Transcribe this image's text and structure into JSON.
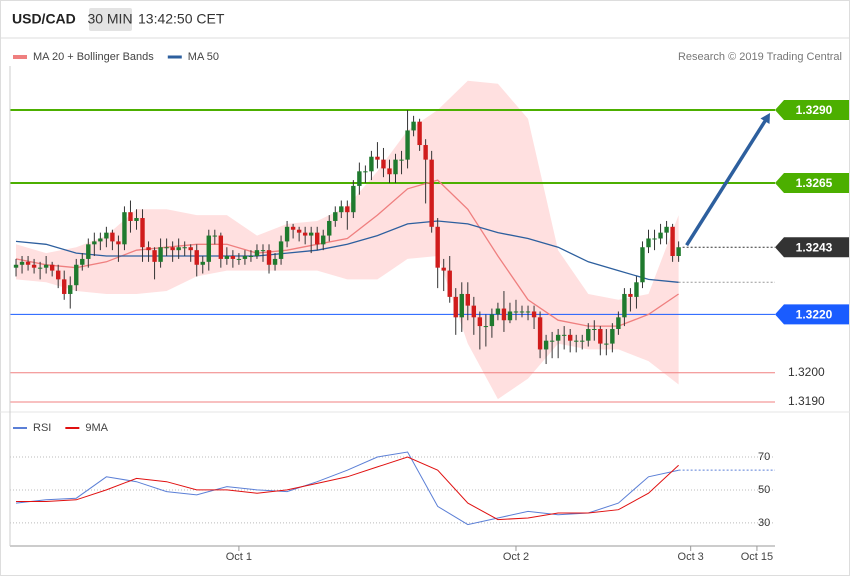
{
  "header": {
    "symbol": "USD/CAD",
    "interval": "30 MIN",
    "time": "13:42:50 CET"
  },
  "chart_data": [
    {
      "type": "candlestick",
      "credit": "Research © 2019 Trading Central",
      "color_up": "#1f7a2e",
      "color_down": "#d01c1c",
      "xlim": [
        -1,
        126
      ],
      "ylim": [
        1.3185,
        1.3305
      ],
      "open": [
        1.3236,
        1.3237,
        1.3238,
        1.3237,
        1.3236,
        1.3236,
        1.3237,
        1.3235,
        1.3232,
        1.3227,
        1.323,
        1.3237,
        1.3239,
        1.3244,
        1.3245,
        1.3246,
        1.3248,
        1.3245,
        1.3244,
        1.3255,
        1.3252,
        1.3253,
        1.3243,
        1.3242,
        1.3238,
        1.3243,
        1.3243,
        1.3242,
        1.3243,
        1.3243,
        1.3242,
        1.3237,
        1.3238,
        1.3247,
        1.3247,
        1.3239,
        1.324,
        1.3239,
        1.3239,
        1.324,
        1.324,
        1.3242,
        1.3242,
        1.3237,
        1.3239,
        1.3245,
        1.325,
        1.3249,
        1.3248,
        1.3247,
        1.3248,
        1.3244,
        1.3247,
        1.3252,
        1.3255,
        1.3257,
        1.3255,
        1.3264,
        1.3269,
        1.3269,
        1.3274,
        1.3273,
        1.327,
        1.3268,
        1.3273,
        1.3273,
        1.3283,
        1.3286,
        1.3278,
        1.3273,
        1.325,
        1.3236,
        1.3235,
        1.3226,
        1.3219,
        1.3227,
        1.3223,
        1.3219,
        1.3216,
        1.3216,
        1.322,
        1.3222,
        1.3218,
        1.3221,
        1.3221,
        1.3221,
        1.3221,
        1.3219,
        1.3208,
        1.3211,
        1.3211,
        1.3213,
        1.3213,
        1.3211,
        1.3211,
        1.3211,
        1.3215,
        1.3215,
        1.321,
        1.321,
        1.3215,
        1.3219,
        1.3227,
        1.3226,
        1.3231,
        1.3243,
        1.3246,
        1.3246,
        1.3248,
        1.325,
        1.324
      ],
      "high": [
        1.3239,
        1.324,
        1.324,
        1.3239,
        1.3238,
        1.324,
        1.3238,
        1.3237,
        1.3235,
        1.3233,
        1.3239,
        1.3241,
        1.3246,
        1.3248,
        1.3248,
        1.325,
        1.3249,
        1.3247,
        1.3257,
        1.3259,
        1.3256,
        1.3256,
        1.3245,
        1.3243,
        1.3246,
        1.3246,
        1.3245,
        1.3246,
        1.3245,
        1.3244,
        1.3244,
        1.324,
        1.3249,
        1.3249,
        1.3248,
        1.3243,
        1.3242,
        1.3241,
        1.3242,
        1.3242,
        1.3244,
        1.3244,
        1.3244,
        1.3241,
        1.3247,
        1.3252,
        1.3251,
        1.325,
        1.325,
        1.325,
        1.325,
        1.3249,
        1.3254,
        1.3257,
        1.3259,
        1.3259,
        1.3266,
        1.3272,
        1.3271,
        1.3276,
        1.3279,
        1.3277,
        1.3273,
        1.3275,
        1.3276,
        1.329,
        1.3288,
        1.3287,
        1.328,
        1.3276,
        1.3253,
        1.3239,
        1.324,
        1.3229,
        1.3231,
        1.3231,
        1.3226,
        1.3221,
        1.322,
        1.3222,
        1.3224,
        1.3228,
        1.3224,
        1.3225,
        1.3223,
        1.3223,
        1.3223,
        1.3221,
        1.3213,
        1.3214,
        1.3215,
        1.3216,
        1.3215,
        1.3213,
        1.3213,
        1.3217,
        1.3218,
        1.3216,
        1.3215,
        1.3217,
        1.3221,
        1.3229,
        1.3229,
        1.3233,
        1.3245,
        1.3249,
        1.3249,
        1.3251,
        1.3252,
        1.3251,
        1.3245
      ],
      "low": [
        1.3233,
        1.3234,
        1.3235,
        1.3234,
        1.3232,
        1.3234,
        1.3233,
        1.3229,
        1.3225,
        1.3222,
        1.3228,
        1.3235,
        1.3236,
        1.324,
        1.3242,
        1.3243,
        1.3242,
        1.3238,
        1.3242,
        1.3248,
        1.3249,
        1.3238,
        1.3238,
        1.3232,
        1.3236,
        1.324,
        1.3238,
        1.3239,
        1.324,
        1.3238,
        1.3233,
        1.3234,
        1.3235,
        1.3244,
        1.3236,
        1.3237,
        1.3236,
        1.3237,
        1.3237,
        1.3238,
        1.3239,
        1.3238,
        1.3234,
        1.3235,
        1.3237,
        1.3243,
        1.3246,
        1.3245,
        1.3244,
        1.3241,
        1.3242,
        1.3242,
        1.3245,
        1.325,
        1.3253,
        1.3249,
        1.3253,
        1.3261,
        1.3265,
        1.3266,
        1.327,
        1.3267,
        1.3265,
        1.3265,
        1.3268,
        1.327,
        1.3281,
        1.3276,
        1.3258,
        1.3248,
        1.3229,
        1.3228,
        1.3224,
        1.3213,
        1.3214,
        1.3218,
        1.3213,
        1.3208,
        1.3209,
        1.3212,
        1.3218,
        1.3214,
        1.3217,
        1.3218,
        1.3219,
        1.3218,
        1.3215,
        1.3205,
        1.3203,
        1.3205,
        1.3205,
        1.3208,
        1.3207,
        1.3207,
        1.3208,
        1.3209,
        1.3211,
        1.3206,
        1.3206,
        1.3207,
        1.3213,
        1.3216,
        1.3221,
        1.3222,
        1.3229,
        1.3241,
        1.3242,
        1.3244,
        1.3244,
        1.3238,
        1.3238
      ],
      "close": [
        1.3237,
        1.3238,
        1.3237,
        1.3236,
        1.3236,
        1.3237,
        1.3235,
        1.3232,
        1.3227,
        1.323,
        1.3237,
        1.3239,
        1.3244,
        1.3245,
        1.3246,
        1.3248,
        1.3245,
        1.3244,
        1.3255,
        1.3252,
        1.3253,
        1.3243,
        1.3242,
        1.3238,
        1.3243,
        1.3243,
        1.3242,
        1.3243,
        1.3243,
        1.3242,
        1.3237,
        1.3238,
        1.3247,
        1.3247,
        1.3239,
        1.324,
        1.3239,
        1.3239,
        1.324,
        1.324,
        1.3242,
        1.3242,
        1.3237,
        1.3239,
        1.3245,
        1.325,
        1.3249,
        1.3248,
        1.3247,
        1.3248,
        1.3244,
        1.3247,
        1.3252,
        1.3255,
        1.3257,
        1.3255,
        1.3264,
        1.3269,
        1.3269,
        1.3274,
        1.3273,
        1.327,
        1.3268,
        1.3273,
        1.3273,
        1.3283,
        1.3286,
        1.3278,
        1.3273,
        1.325,
        1.3236,
        1.3235,
        1.3226,
        1.3219,
        1.3227,
        1.3223,
        1.3219,
        1.3216,
        1.3216,
        1.322,
        1.3222,
        1.3218,
        1.3221,
        1.3221,
        1.3221,
        1.3221,
        1.3219,
        1.3208,
        1.3211,
        1.3211,
        1.3213,
        1.3213,
        1.3211,
        1.3211,
        1.3211,
        1.3215,
        1.3215,
        1.321,
        1.321,
        1.3215,
        1.3219,
        1.3227,
        1.3226,
        1.3231,
        1.3243,
        1.3246,
        1.3246,
        1.3248,
        1.325,
        1.324,
        1.3243
      ],
      "series": [
        {
          "name": "MA 20 + Bollinger Bands",
          "color": "#ef7f7f",
          "band_color": "#ffe0e0",
          "x": [
            0,
            5,
            10,
            15,
            20,
            25,
            30,
            35,
            40,
            45,
            50,
            55,
            60,
            65,
            70,
            75,
            80,
            85,
            90,
            95,
            100,
            105,
            110
          ],
          "values": [
            1.3239,
            1.3237,
            1.3236,
            1.3238,
            1.3242,
            1.3243,
            1.3244,
            1.3244,
            1.3241,
            1.3242,
            1.3244,
            1.3246,
            1.3254,
            1.3263,
            1.3266,
            1.3256,
            1.324,
            1.3225,
            1.3218,
            1.3216,
            1.3216,
            1.322,
            1.3227
          ],
          "upper": [
            1.3244,
            1.3241,
            1.3243,
            1.3247,
            1.3256,
            1.3256,
            1.3254,
            1.3254,
            1.3247,
            1.3251,
            1.3252,
            1.3257,
            1.3269,
            1.3283,
            1.329,
            1.33,
            1.3299,
            1.3287,
            1.3242,
            1.3227,
            1.3225,
            1.3227,
            1.3254
          ],
          "lower": [
            1.3232,
            1.3231,
            1.3228,
            1.3227,
            1.3227,
            1.3228,
            1.3233,
            1.3235,
            1.3235,
            1.3235,
            1.3235,
            1.3232,
            1.3232,
            1.3239,
            1.324,
            1.321,
            1.3191,
            1.3198,
            1.321,
            1.3208,
            1.3208,
            1.3204,
            1.3196
          ]
        },
        {
          "name": "MA 50",
          "color": "#2d5f9e",
          "x": [
            0,
            5,
            10,
            15,
            20,
            25,
            30,
            35,
            40,
            45,
            50,
            55,
            60,
            65,
            70,
            75,
            80,
            85,
            90,
            95,
            100,
            105,
            110
          ],
          "values": [
            1.3245,
            1.3244,
            1.3241,
            1.324,
            1.324,
            1.324,
            1.324,
            1.324,
            1.324,
            1.3241,
            1.3242,
            1.3244,
            1.3247,
            1.3251,
            1.3252,
            1.3251,
            1.3248,
            1.3246,
            1.3243,
            1.3238,
            1.3235,
            1.3232,
            1.3231
          ]
        }
      ],
      "levels": [
        {
          "value": 1.329,
          "label": "1.3290",
          "color": "#4caf00",
          "box": true
        },
        {
          "value": 1.3265,
          "label": "1.3265",
          "color": "#4caf00",
          "box": true
        },
        {
          "value": 1.3243,
          "label": "1.3243",
          "color": "#333333",
          "box": true,
          "style": "dotted"
        },
        {
          "value": 1.322,
          "label": "1.3220",
          "color": "#1a5cff",
          "box": true
        },
        {
          "value": 1.32,
          "label": "1.3200",
          "color": "#f08080",
          "box": false
        },
        {
          "value": 1.319,
          "label": "1.3190",
          "color": "#f08080",
          "box": false
        }
      ],
      "forecast_color": "#2d5f9e"
    },
    {
      "type": "line",
      "xlim": [
        -1,
        126
      ],
      "ylim": [
        16,
        90
      ],
      "yticks": [
        30,
        50,
        70
      ],
      "grid": true,
      "xticks": [
        {
          "value": 37,
          "label": "Oct 1"
        },
        {
          "value": 83,
          "label": "Oct 2"
        },
        {
          "value": 112,
          "label": "Oct 3"
        },
        {
          "value": 123,
          "label": "Oct 15"
        }
      ],
      "series": [
        {
          "name": "RSI",
          "color": "#5b7fd6",
          "x": [
            0,
            5,
            10,
            15,
            20,
            25,
            30,
            35,
            40,
            45,
            50,
            55,
            60,
            65,
            70,
            75,
            80,
            85,
            90,
            95,
            100,
            105,
            110
          ],
          "values": [
            42,
            44,
            45,
            58,
            55,
            49,
            47,
            52,
            50,
            49,
            55,
            62,
            70,
            73,
            40,
            29,
            33,
            37,
            35,
            36,
            42,
            58,
            62
          ]
        },
        {
          "name": "9MA",
          "color": "#e01010",
          "x": [
            0,
            5,
            10,
            15,
            20,
            25,
            30,
            35,
            40,
            45,
            50,
            55,
            60,
            65,
            70,
            75,
            80,
            85,
            90,
            95,
            100,
            105,
            110
          ],
          "values": [
            43,
            43,
            44,
            50,
            57,
            55,
            50,
            50,
            48,
            50,
            54,
            58,
            64,
            70,
            62,
            42,
            32,
            33,
            36,
            36,
            38,
            48,
            65
          ]
        }
      ]
    }
  ]
}
